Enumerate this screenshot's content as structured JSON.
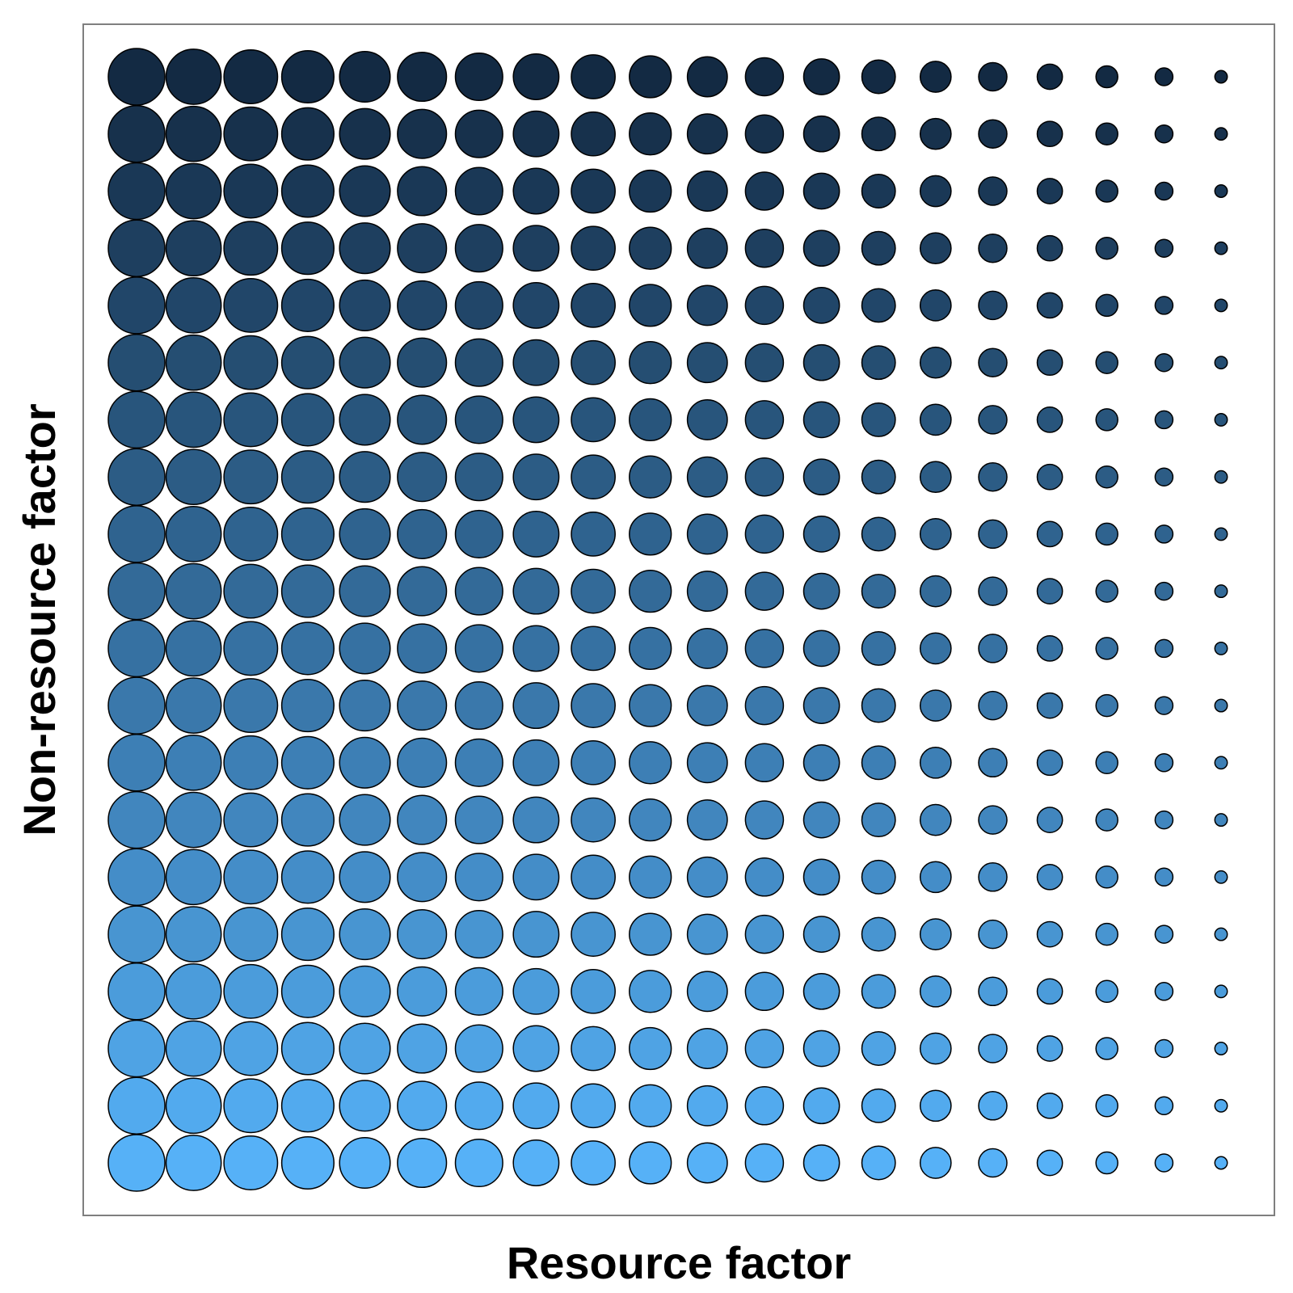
{
  "chart_data": {
    "type": "scatter",
    "encoding": "grid of circles; circle size decreases along the resource factor, color lightens along the non-resource factor",
    "title": "",
    "xlabel": "Resource factor",
    "ylabel": "Non-resource factor",
    "grid": false,
    "ticks": false,
    "columns": 20,
    "rows": 20,
    "x_levels": [
      1,
      2,
      3,
      4,
      5,
      6,
      7,
      8,
      9,
      10,
      11,
      12,
      13,
      14,
      15,
      16,
      17,
      18,
      19,
      20
    ],
    "y_levels": [
      1,
      2,
      3,
      4,
      5,
      6,
      7,
      8,
      9,
      10,
      11,
      12,
      13,
      14,
      15,
      16,
      17,
      18,
      19,
      20
    ],
    "size_range_relative": [
      1.0,
      0.22
    ],
    "color_top": "#132a43",
    "color_bottom": "#56b1f7",
    "frame_color": "#7f7f7f",
    "point_stroke": "#000000"
  }
}
